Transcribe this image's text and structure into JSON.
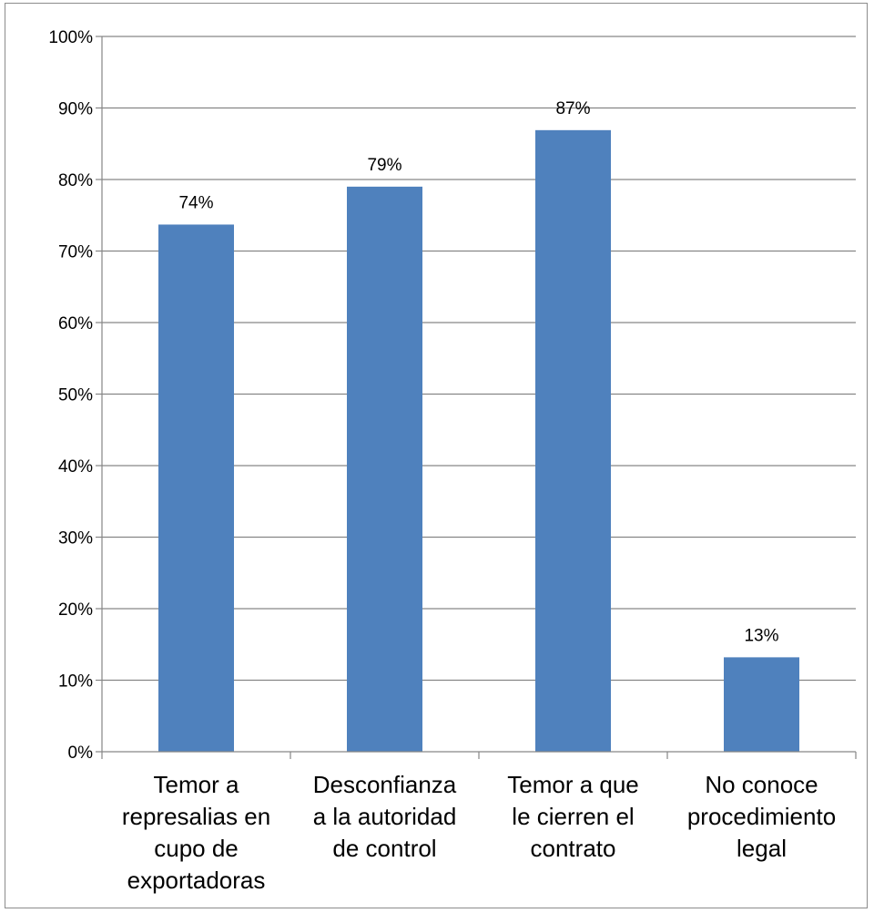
{
  "chart_data": {
    "type": "bar",
    "categories": [
      [
        "Temor a",
        "represalias en",
        "cupo de",
        "exportadoras"
      ],
      [
        "Desconfianza",
        "a la autoridad",
        "de control"
      ],
      [
        "Temor a que",
        "le cierren el",
        "contrato"
      ],
      [
        "No conoce",
        "procedimiento",
        "legal"
      ]
    ],
    "values": [
      0.737,
      0.79,
      0.869,
      0.132
    ],
    "data_labels": [
      "74%",
      "79%",
      "87%",
      "13%"
    ],
    "yticks": [
      "0%",
      "10%",
      "20%",
      "30%",
      "40%",
      "50%",
      "60%",
      "70%",
      "80%",
      "90%",
      "100%"
    ],
    "ylim": [
      0,
      1
    ],
    "grid": true,
    "legend": "none",
    "bar_color": "#4f81bd",
    "grid_color": "#868686"
  }
}
